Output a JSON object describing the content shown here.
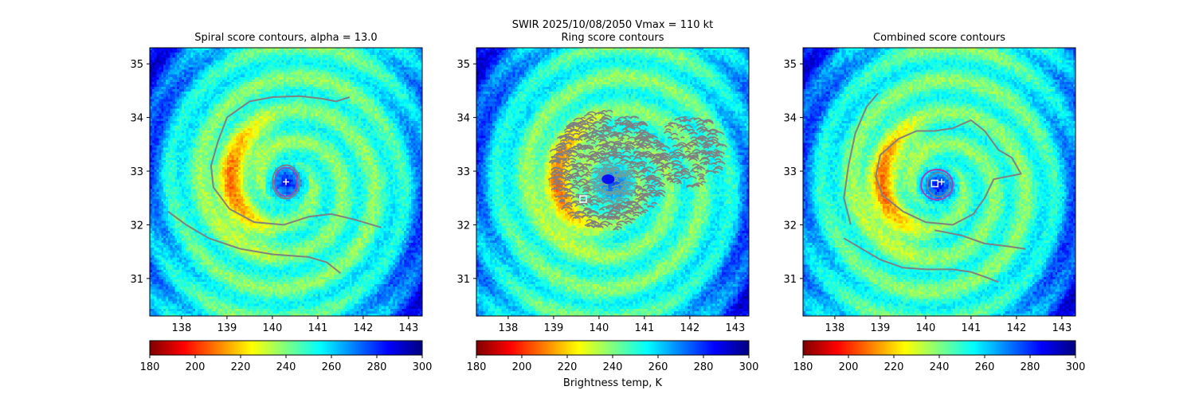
{
  "figure": {
    "suptitle": "SWIR  2025/10/08/2050    Vmax = 110 kt",
    "colorbar_label": "Brightness temp, K"
  },
  "colors": {
    "contour": "#808080",
    "eye_contour": "#b03cb0",
    "marker": "#ffffff"
  },
  "colormap": {
    "name": "jet_r",
    "stops": [
      "#7f0000",
      "#ff0000",
      "#ff7f00",
      "#ffff00",
      "#7fff7f",
      "#00ffff",
      "#007fff",
      "#0000ff",
      "#00007f"
    ]
  },
  "chart_data": [
    {
      "type": "heatmap",
      "title": "Spiral score contours, alpha = 13.0",
      "xlim": [
        137.3,
        143.3
      ],
      "ylim": [
        30.3,
        35.3
      ],
      "xticks": [
        "138",
        "139",
        "140",
        "141",
        "142",
        "143"
      ],
      "yticks": [
        "31",
        "32",
        "33",
        "34",
        "35"
      ],
      "colorbar": {
        "range": [
          180,
          300
        ],
        "ticks": [
          "180",
          "200",
          "220",
          "240",
          "260",
          "280",
          "300"
        ]
      },
      "eye_center": {
        "lon": 140.3,
        "lat": 32.8
      },
      "marker": {
        "symbol": "plus",
        "lon": 140.3,
        "lat": 32.8
      },
      "contours": [
        [
          [
            140.25,
            32.0
          ],
          [
            139.6,
            32.05
          ],
          [
            139.05,
            32.3
          ],
          [
            138.7,
            32.7
          ],
          [
            138.65,
            33.1
          ],
          [
            138.8,
            33.55
          ],
          [
            139.0,
            34.0
          ],
          [
            139.5,
            34.3
          ],
          [
            140.0,
            34.38
          ],
          [
            140.6,
            34.4
          ],
          [
            141.1,
            34.35
          ],
          [
            141.4,
            34.3
          ],
          [
            141.7,
            34.38
          ]
        ],
        [
          [
            137.7,
            32.25
          ],
          [
            138.1,
            32.0
          ],
          [
            138.6,
            31.75
          ],
          [
            139.3,
            31.55
          ],
          [
            140.0,
            31.45
          ],
          [
            140.8,
            31.4
          ],
          [
            141.2,
            31.3
          ],
          [
            141.5,
            31.1
          ]
        ],
        [
          [
            140.25,
            32.0
          ],
          [
            140.8,
            32.15
          ],
          [
            141.3,
            32.2
          ],
          [
            141.8,
            32.1
          ],
          [
            142.4,
            31.95
          ]
        ]
      ]
    },
    {
      "type": "heatmap",
      "title": "Ring score contours",
      "xlim": [
        137.3,
        143.3
      ],
      "ylim": [
        30.3,
        35.3
      ],
      "xticks": [
        "138",
        "139",
        "140",
        "141",
        "142",
        "143"
      ],
      "yticks": [
        "31",
        "32",
        "33",
        "34",
        "35"
      ],
      "colorbar": {
        "range": [
          180,
          300
        ],
        "ticks": [
          "180",
          "200",
          "220",
          "240",
          "260",
          "280",
          "300"
        ]
      },
      "eye_center": {
        "lon": 140.3,
        "lat": 32.8
      },
      "marker": {
        "symbol": "square",
        "lon": 139.65,
        "lat": 32.48
      },
      "ring_region": {
        "center": [
          140.2,
          33.0
        ],
        "radius_deg": 1.25,
        "lobe_center": [
          142.0,
          33.35
        ],
        "lobe_radius_deg": 0.75
      }
    },
    {
      "type": "heatmap",
      "title": "Combined score contours",
      "xlim": [
        137.3,
        143.3
      ],
      "ylim": [
        30.3,
        35.3
      ],
      "xticks": [
        "138",
        "139",
        "140",
        "141",
        "142",
        "143"
      ],
      "yticks": [
        "31",
        "32",
        "33",
        "34",
        "35"
      ],
      "colorbar": {
        "range": [
          180,
          300
        ],
        "ticks": [
          "180",
          "200",
          "220",
          "240",
          "260",
          "280",
          "300"
        ]
      },
      "eye_center": {
        "lon": 140.25,
        "lat": 32.75
      },
      "marker": {
        "symbol": "plus",
        "lon": 140.35,
        "lat": 32.8
      },
      "marker2": {
        "symbol": "square",
        "lon": 140.2,
        "lat": 32.77
      },
      "contours": [
        [
          [
            140.6,
            32.0
          ],
          [
            140.0,
            32.05
          ],
          [
            139.5,
            32.25
          ],
          [
            139.05,
            32.55
          ],
          [
            138.9,
            32.9
          ],
          [
            139.0,
            33.3
          ],
          [
            139.4,
            33.6
          ],
          [
            139.8,
            33.75
          ],
          [
            140.2,
            33.75
          ],
          [
            140.6,
            33.8
          ],
          [
            141.0,
            33.95
          ],
          [
            141.3,
            33.75
          ],
          [
            141.6,
            33.4
          ],
          [
            141.9,
            33.25
          ],
          [
            142.1,
            32.95
          ],
          [
            141.5,
            32.85
          ],
          [
            141.3,
            32.5
          ],
          [
            141.05,
            32.2
          ],
          [
            140.6,
            32.0
          ]
        ],
        [
          [
            138.2,
            31.75
          ],
          [
            138.6,
            31.55
          ],
          [
            139.0,
            31.35
          ],
          [
            139.5,
            31.2
          ],
          [
            140.0,
            31.17
          ],
          [
            140.6,
            31.17
          ],
          [
            141.0,
            31.12
          ],
          [
            141.4,
            31.0
          ],
          [
            141.6,
            30.93
          ]
        ],
        [
          [
            140.2,
            31.9
          ],
          [
            140.8,
            31.8
          ],
          [
            141.3,
            31.65
          ],
          [
            141.8,
            31.6
          ],
          [
            142.2,
            31.55
          ]
        ],
        [
          [
            138.35,
            32.0
          ],
          [
            138.2,
            32.5
          ],
          [
            138.3,
            33.1
          ],
          [
            138.45,
            33.7
          ],
          [
            138.7,
            34.2
          ],
          [
            138.95,
            34.45
          ]
        ]
      ]
    }
  ]
}
